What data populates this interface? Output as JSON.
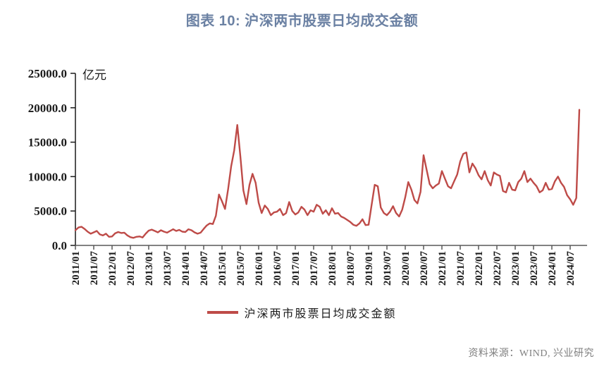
{
  "title": "图表 10: 沪深两市股票日均成交金额",
  "legend": {
    "label": "沪深两市股票日均成交金额"
  },
  "source": "资料来源：WIND, 兴业研究",
  "colors": {
    "line": "#BE4B48",
    "title": "#6B81A3",
    "source_text": "#808080",
    "y_axis": "#1a1a1a",
    "x_axis": "#595959"
  },
  "chart_data": {
    "type": "line",
    "title": "图表 10: 沪深两市股票日均成交金额",
    "ylabel": "亿元",
    "xlabel": "",
    "ylim": [
      0,
      25000
    ],
    "ytick_step": 5000,
    "ytick_labels": [
      "0.0",
      "5000.0",
      "10000.0",
      "15000.0",
      "20000.0",
      "25000.0"
    ],
    "xtick_labels": [
      "2011/01",
      "2011/07",
      "2012/01",
      "2012/07",
      "2013/01",
      "2013/07",
      "2014/01",
      "2014/07",
      "2015/01",
      "2015/07",
      "2016/01",
      "2016/07",
      "2017/01",
      "2017/07",
      "2018/01",
      "2018/07",
      "2019/01",
      "2019/07",
      "2020/01",
      "2020/07",
      "2021/01",
      "2021/07",
      "2022/01",
      "2022/07",
      "2023/01",
      "2023/07",
      "2024/01",
      "2024/07"
    ],
    "xtick_every_months": 6,
    "grid": false,
    "legend_position": "bottom",
    "series": [
      {
        "name": "沪深两市股票日均成交金额",
        "start": "2011/01",
        "end": "2024/10",
        "freq": "monthly",
        "unit": "亿元",
        "values": [
          2200,
          2600,
          2700,
          2400,
          2000,
          1700,
          1900,
          2100,
          1600,
          1450,
          1700,
          1250,
          1300,
          1750,
          1950,
          1800,
          1850,
          1450,
          1200,
          1100,
          1250,
          1300,
          1150,
          1700,
          2150,
          2300,
          2100,
          1900,
          2200,
          2000,
          1850,
          2100,
          2350,
          2100,
          2250,
          2000,
          1950,
          2350,
          2200,
          1900,
          1700,
          1850,
          2400,
          2900,
          3200,
          3100,
          4300,
          7400,
          6400,
          5300,
          8200,
          11500,
          13800,
          17500,
          13000,
          8000,
          6000,
          8800,
          10400,
          9100,
          6200,
          4700,
          5800,
          5300,
          4400,
          4800,
          4900,
          5300,
          4400,
          4700,
          6300,
          5000,
          4500,
          4800,
          5600,
          5200,
          4400,
          5100,
          4900,
          5900,
          5600,
          4600,
          5100,
          4400,
          5400,
          4600,
          4700,
          4200,
          4000,
          3700,
          3400,
          3000,
          2850,
          3200,
          3800,
          2950,
          3000,
          5900,
          8800,
          8600,
          5500,
          4700,
          4400,
          4900,
          5700,
          4700,
          4200,
          5200,
          7000,
          9200,
          8100,
          6600,
          6100,
          7800,
          13100,
          11000,
          8900,
          8300,
          8700,
          9000,
          10800,
          9700,
          8600,
          8300,
          9300,
          10300,
          12200,
          13300,
          13500,
          10600,
          11900,
          11200,
          10200,
          9600,
          10800,
          9500,
          8700,
          10600,
          10300,
          10100,
          7900,
          7700,
          9100,
          8100,
          8000,
          9200,
          9700,
          10800,
          9200,
          9700,
          9100,
          8600,
          7700,
          8000,
          9100,
          8100,
          8200,
          9300,
          10000,
          9100,
          8500,
          7300,
          6700,
          5900,
          6900,
          19700
        ]
      }
    ]
  }
}
